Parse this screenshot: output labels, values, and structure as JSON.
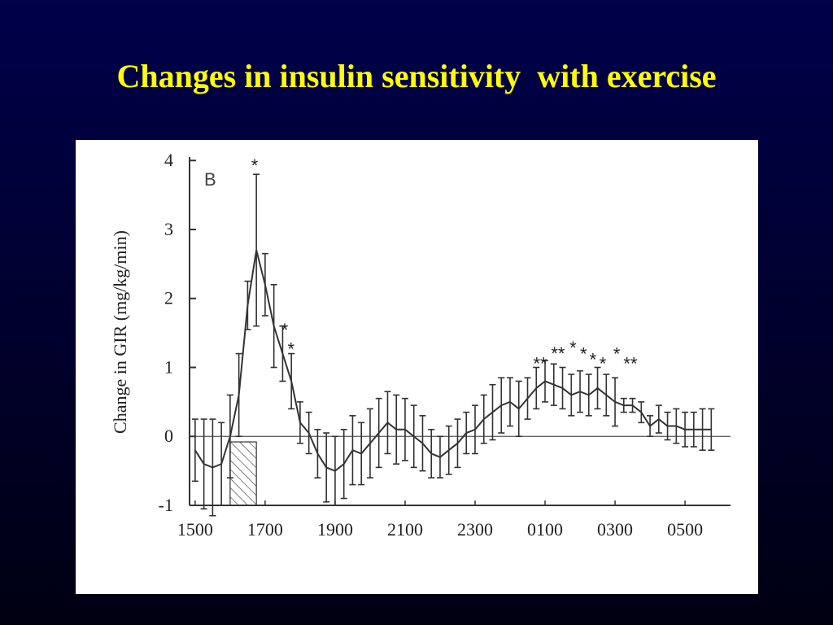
{
  "chart_data": {
    "type": "line",
    "title": "Changes in insulin sensitivity  with exercise",
    "panel_label": "B",
    "y_label": "Change in GIR (mg/kg/min)",
    "x": [
      15,
      15.25,
      15.5,
      15.75,
      16,
      16.25,
      16.5,
      16.75,
      17,
      17.25,
      17.5,
      17.75,
      18,
      18.25,
      18.5,
      18.75,
      19,
      19.25,
      19.5,
      19.75,
      20,
      20.25,
      20.5,
      20.75,
      21,
      21.25,
      21.5,
      21.75,
      22,
      22.25,
      22.5,
      22.75,
      23,
      23.25,
      23.5,
      23.75,
      24,
      24.25,
      24.5,
      24.75,
      25,
      25.25,
      25.5,
      25.75,
      26,
      26.25,
      26.5,
      26.75,
      27,
      27.25,
      27.5,
      27.75,
      28,
      28.25,
      28.5,
      28.75,
      29,
      29.25,
      29.5,
      29.75
    ],
    "series": [
      {
        "color": "#333333",
        "values": [
          -0.2,
          -0.4,
          -0.45,
          -0.4,
          0.0,
          0.6,
          1.9,
          2.7,
          2.2,
          1.6,
          1.2,
          0.8,
          0.2,
          0.05,
          -0.25,
          -0.45,
          -0.5,
          -0.4,
          -0.2,
          -0.25,
          -0.1,
          0.05,
          0.2,
          0.1,
          0.1,
          0.0,
          -0.1,
          -0.25,
          -0.3,
          -0.2,
          -0.1,
          0.05,
          0.1,
          0.25,
          0.35,
          0.45,
          0.5,
          0.4,
          0.55,
          0.7,
          0.8,
          0.75,
          0.7,
          0.6,
          0.65,
          0.6,
          0.7,
          0.6,
          0.5,
          0.45,
          0.45,
          0.35,
          0.15,
          0.25,
          0.15,
          0.15,
          0.1,
          0.1,
          0.1,
          0.1
        ],
        "errors": [
          0.45,
          0.65,
          0.7,
          0.6,
          0.6,
          0.6,
          0.35,
          1.1,
          0.45,
          0.6,
          0.4,
          0.4,
          0.3,
          0.3,
          0.35,
          0.5,
          0.5,
          0.5,
          0.5,
          0.45,
          0.5,
          0.5,
          0.45,
          0.5,
          0.45,
          0.45,
          0.4,
          0.35,
          0.3,
          0.35,
          0.35,
          0.3,
          0.35,
          0.35,
          0.4,
          0.4,
          0.35,
          0.4,
          0.3,
          0.3,
          0.3,
          0.3,
          0.3,
          0.3,
          0.3,
          0.3,
          0.3,
          0.3,
          0.35,
          0.1,
          0.1,
          0.15,
          0.15,
          0.2,
          0.2,
          0.25,
          0.25,
          0.25,
          0.3,
          0.3
        ]
      }
    ],
    "exercise_bar": {
      "x": [
        16,
        16.75
      ],
      "y": [
        -1,
        -0.08
      ]
    },
    "hline": 0,
    "annotations": [
      {
        "text": "*",
        "x": 16.7,
        "y": 4.0
      },
      {
        "text": "*",
        "x": 17.56,
        "y": 1.62
      },
      {
        "text": "*",
        "x": 17.74,
        "y": 1.34
      },
      {
        "text": "**",
        "x": 24.86,
        "y": 1.13
      },
      {
        "text": "**",
        "x": 25.37,
        "y": 1.28
      },
      {
        "text": "*",
        "x": 25.8,
        "y": 1.36
      },
      {
        "text": "*",
        "x": 26.1,
        "y": 1.27
      },
      {
        "text": "*",
        "x": 26.37,
        "y": 1.19
      },
      {
        "text": "*",
        "x": 26.65,
        "y": 1.13
      },
      {
        "text": "*",
        "x": 27.05,
        "y": 1.27
      },
      {
        "text": "**",
        "x": 27.44,
        "y": 1.13
      }
    ],
    "xlim": [
      14.84,
      30.3
    ],
    "ylim": [
      -1,
      4.05
    ],
    "xticks": [
      {
        "value": 15,
        "label": "1500"
      },
      {
        "value": 17,
        "label": "1700"
      },
      {
        "value": 19,
        "label": "1900"
      },
      {
        "value": 21,
        "label": "2100"
      },
      {
        "value": 23,
        "label": "2300"
      },
      {
        "value": 25,
        "label": "0100"
      },
      {
        "value": 27,
        "label": "0300"
      },
      {
        "value": 29,
        "label": "0500"
      }
    ],
    "yticks": [
      4,
      3,
      2,
      1,
      0,
      -1
    ]
  }
}
